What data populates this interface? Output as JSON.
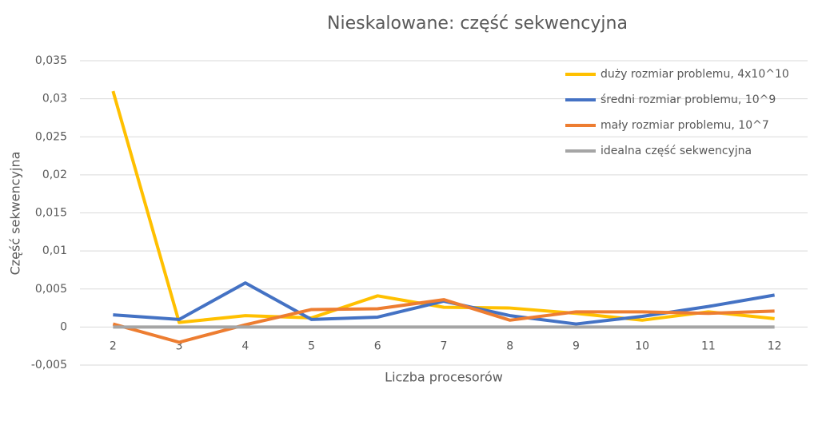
{
  "chart_data": {
    "type": "line",
    "title": "Nieskalowane: część sekwencyjna",
    "x_label": "Liczba procesorów",
    "y_label": "Część sekwencyjna",
    "categories": [
      "2",
      "3",
      "4",
      "5",
      "6",
      "7",
      "8",
      "9",
      "10",
      "11",
      "12"
    ],
    "series": [
      {
        "name": "duży rozmiar problemu, 4x10^10",
        "color": "#ffc000",
        "values": [
          0.031,
          0.0006,
          0.0015,
          0.0012,
          0.0041,
          0.0026,
          0.0025,
          0.0018,
          0.0009,
          0.002,
          0.0011
        ]
      },
      {
        "name": "średni rozmiar problemu, 10^9",
        "color": "#4472c4",
        "values": [
          0.0016,
          0.001,
          0.0058,
          0.001,
          0.0013,
          0.0034,
          0.0015,
          0.0004,
          0.0014,
          0.0027,
          0.0042
        ]
      },
      {
        "name": "mały rozmiar problemu, 10^7",
        "color": "#ed7d31",
        "values": [
          0.0004,
          -0.002,
          0.0003,
          0.0023,
          0.0024,
          0.0036,
          0.0009,
          0.002,
          0.002,
          0.0018,
          0.0021
        ]
      },
      {
        "name": "idealna część sekwencyjna",
        "color": "#a5a5a5",
        "values": [
          0,
          0,
          0,
          0,
          0,
          0,
          0,
          0,
          0,
          0,
          0
        ]
      }
    ],
    "ylim": [
      -0.005,
      0.035
    ],
    "yticks": [
      {
        "value": -0.005,
        "label": "-0,005"
      },
      0,
      {
        "value": 0.005,
        "label": "0,005"
      },
      {
        "value": 0.01,
        "label": "0,01"
      },
      {
        "value": 0.015,
        "label": "0,015"
      },
      {
        "value": 0.02,
        "label": "0,02"
      },
      {
        "value": 0.025,
        "label": "0,025"
      },
      {
        "value": 0.03,
        "label": "0,03"
      },
      {
        "value": 0.035,
        "label": "0,035"
      }
    ],
    "grid": true,
    "legend": "top-right"
  }
}
